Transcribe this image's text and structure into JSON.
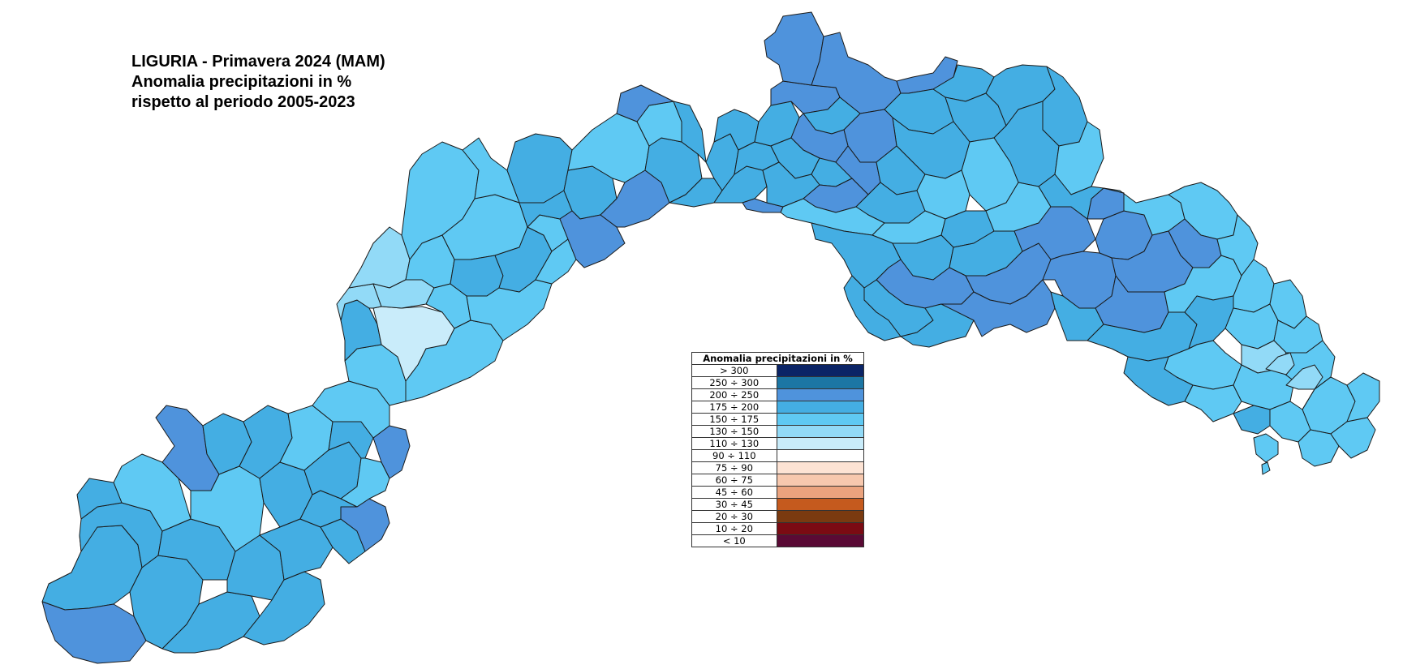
{
  "title": {
    "line1": "LIGURIA - Primavera 2024 (MAM)",
    "line2": "Anomalia precipitazioni in %",
    "line3": "rispetto al periodo 2005-2023"
  },
  "legend": {
    "header": "Anomalia precipitazioni in %",
    "items": [
      {
        "label": "> 300",
        "color": "#0b2466"
      },
      {
        "label": "250 ÷ 300",
        "color": "#1c76a4"
      },
      {
        "label": "200 ÷ 250",
        "color": "#4f93dc"
      },
      {
        "label": "175 ÷ 200",
        "color": "#44aee3"
      },
      {
        "label": "150 ÷ 175",
        "color": "#5fc9f3"
      },
      {
        "label": "130 ÷ 150",
        "color": "#92daf7"
      },
      {
        "label": "110 ÷ 130",
        "color": "#c9ecfa"
      },
      {
        "label": "90 ÷ 110",
        "color": "#ffffff"
      },
      {
        "label": "75 ÷ 90",
        "color": "#fde3d4"
      },
      {
        "label": "60 ÷ 75",
        "color": "#f7c8ae"
      },
      {
        "label": "45 ÷ 60",
        "color": "#eba37e"
      },
      {
        "label": "30 ÷ 45",
        "color": "#c55a1e"
      },
      {
        "label": "20 ÷ 30",
        "color": "#7a3a10"
      },
      {
        "label": "10 ÷ 20",
        "color": "#7b0b13"
      },
      {
        "label": "< 10",
        "color": "#5a0a35"
      }
    ]
  }
}
